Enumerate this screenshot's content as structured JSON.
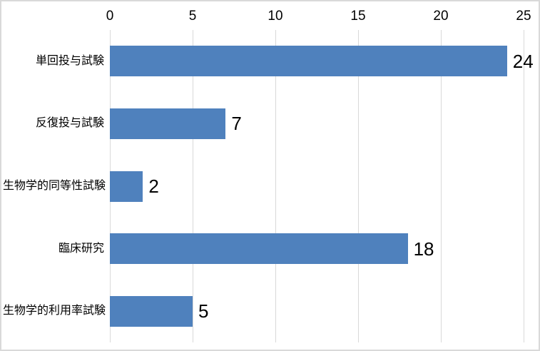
{
  "chart_data": {
    "type": "bar",
    "orientation": "horizontal",
    "title": "",
    "xlabel": "",
    "ylabel": "",
    "categories": [
      "単回投与試験",
      "反復投与試験",
      "生物学的同等性試験",
      "臨床研究",
      "生物学的利用率試験"
    ],
    "values": [
      24,
      7,
      2,
      18,
      5
    ],
    "data_labels": [
      "24",
      "7",
      "2",
      "18",
      "5"
    ],
    "x_ticks": [
      "0",
      "5",
      "10",
      "15",
      "20",
      "25"
    ],
    "x_tick_values": [
      0,
      5,
      10,
      15,
      20,
      25
    ],
    "xlim": [
      0,
      25
    ],
    "axis_position": "top",
    "grid": "vertical",
    "legend": "none",
    "colors": {
      "bar": "#4f81bd",
      "gridline": "#d9d9d9",
      "text": "#000000",
      "frame_border": "#d9d9d9",
      "background": "#ffffff"
    }
  }
}
